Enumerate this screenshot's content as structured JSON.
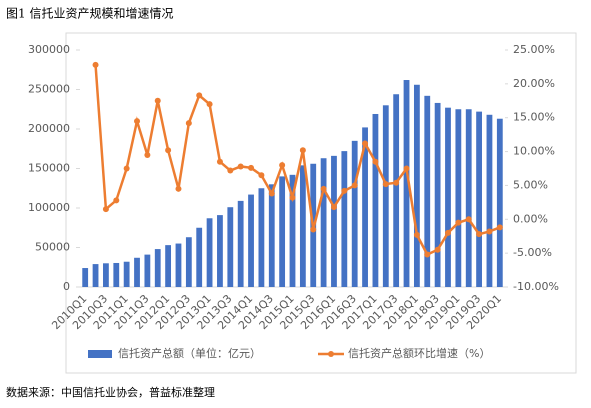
{
  "chart_data": {
    "type": "bar_line",
    "title": "图1  信托业资产规模和增速情况",
    "source": "数据来源：中国信托业协会，普益标准整理",
    "categories": [
      "2010Q1",
      null,
      "2010Q3",
      null,
      "2011Q1",
      null,
      "2011Q3",
      null,
      "2012Q1",
      null,
      "2012Q3",
      null,
      "2013Q1",
      null,
      "2013Q3",
      null,
      "2014Q1",
      null,
      "2014Q3",
      null,
      "2015Q1",
      null,
      "2015Q3",
      null,
      "2016Q1",
      null,
      "2016Q3",
      null,
      "2017Q1",
      null,
      "2017Q3",
      null,
      "2018Q1",
      null,
      "2018Q3",
      null,
      "2019Q1",
      null,
      "2019Q3",
      null,
      "2020Q1"
    ],
    "series": [
      {
        "name": "信托资产总额（单位：亿元）",
        "color": "#4472c4",
        "type": "bar",
        "values": [
          24000,
          29000,
          30000,
          30400,
          32000,
          37000,
          41000,
          48000,
          53000,
          55000,
          63000,
          75000,
          87000,
          91000,
          101000,
          109000,
          117000,
          125000,
          130000,
          140000,
          142000,
          154000,
          156000,
          163000,
          166000,
          172000,
          185000,
          202000,
          219000,
          230000,
          244000,
          262000,
          256000,
          242000,
          233000,
          227000,
          225000,
          225000,
          222000,
          218000,
          213000
        ]
      },
      {
        "name": "信托资产总额环比增速（%）",
        "color": "#ed7d31",
        "type": "line",
        "axis": "y2",
        "values": [
          null,
          22.8,
          1.5,
          2.8,
          7.5,
          14.5,
          9.5,
          17.5,
          10.2,
          4.5,
          14.2,
          18.3,
          17.0,
          8.5,
          7.2,
          7.8,
          7.6,
          6.5,
          3.8,
          8.0,
          3.2,
          10.2,
          -1.5,
          4.5,
          1.8,
          4.2,
          5.0,
          11.2,
          8.5,
          5.2,
          5.4,
          7.5,
          -2.3,
          -5.2,
          -4.5,
          -2.0,
          -0.5,
          0.0,
          -2.2,
          -1.8,
          -1.2
        ]
      }
    ],
    "ylim": [
      0,
      300000
    ],
    "yticks": [
      0,
      50000,
      100000,
      150000,
      200000,
      250000,
      300000
    ],
    "y2lim": [
      -10,
      25
    ],
    "y2ticks": [
      {
        "value": -10,
        "label": "-10.00%"
      },
      {
        "value": -5,
        "label": "-5.00%"
      },
      {
        "value": 0,
        "label": "0.00%"
      },
      {
        "value": 5,
        "label": "5.00%"
      },
      {
        "value": 10,
        "label": "10.00%"
      },
      {
        "value": 15,
        "label": "15.00%"
      },
      {
        "value": 20,
        "label": "20.00%"
      },
      {
        "value": 25,
        "label": "25.00%"
      }
    ],
    "legend": "bottom"
  }
}
